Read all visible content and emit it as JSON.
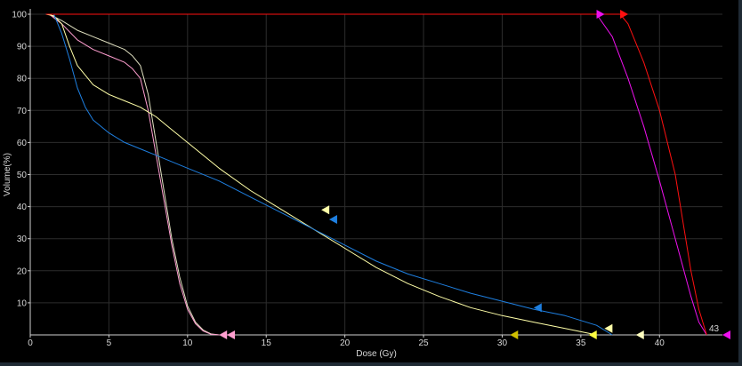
{
  "chart_data": {
    "type": "line",
    "title": "",
    "xlabel": "Dose (Gy)",
    "ylabel": "Volume(%)",
    "xlim": [
      0,
      44
    ],
    "ylim": [
      0,
      100
    ],
    "x_ticks": [
      0,
      5,
      10,
      15,
      20,
      25,
      30,
      35,
      40
    ],
    "y_ticks": [
      10,
      20,
      30,
      40,
      50,
      60,
      70,
      80,
      90,
      100
    ],
    "grid": true,
    "corner_label": "43",
    "colors": {
      "background": "#000000",
      "grid": "#2c2c2c",
      "axis": "#d0d0d0",
      "text": "#d8d8d8"
    },
    "series": [
      {
        "color": "#e0e0c0",
        "points": [
          [
            1.2,
            100
          ],
          [
            2.0,
            98
          ],
          [
            3.0,
            95
          ],
          [
            4.0,
            93
          ],
          [
            5.0,
            91
          ],
          [
            6.0,
            89
          ],
          [
            6.5,
            87
          ],
          [
            7.0,
            84
          ],
          [
            7.5,
            75
          ],
          [
            8.0,
            60
          ],
          [
            8.5,
            45
          ],
          [
            9.0,
            30
          ],
          [
            9.5,
            18
          ],
          [
            10.0,
            9
          ],
          [
            10.5,
            4
          ],
          [
            11.0,
            1.5
          ],
          [
            11.5,
            0.3
          ],
          [
            12.0,
            0
          ]
        ]
      },
      {
        "color": "#ff9ed0",
        "points": [
          [
            1.2,
            100
          ],
          [
            2.0,
            97
          ],
          [
            3.0,
            92
          ],
          [
            4.0,
            89
          ],
          [
            5.0,
            87
          ],
          [
            6.0,
            85
          ],
          [
            6.5,
            83
          ],
          [
            7.0,
            80
          ],
          [
            7.5,
            70
          ],
          [
            8.0,
            56
          ],
          [
            8.5,
            42
          ],
          [
            9.0,
            28
          ],
          [
            9.5,
            16
          ],
          [
            10.0,
            8
          ],
          [
            10.5,
            3.5
          ],
          [
            11.0,
            1.2
          ],
          [
            11.5,
            0.2
          ],
          [
            12.0,
            0
          ]
        ]
      },
      {
        "color": "#ffffa8",
        "points": [
          [
            1.0,
            100
          ],
          [
            1.5,
            99.5
          ],
          [
            2.0,
            97
          ],
          [
            2.5,
            90
          ],
          [
            3.0,
            84
          ],
          [
            4.0,
            78
          ],
          [
            5.0,
            75
          ],
          [
            6.0,
            73
          ],
          [
            7.0,
            71
          ],
          [
            8.0,
            68
          ],
          [
            9.0,
            64
          ],
          [
            10.0,
            60
          ],
          [
            12.0,
            52
          ],
          [
            14.0,
            45
          ],
          [
            16.0,
            39
          ],
          [
            18.0,
            33
          ],
          [
            20.0,
            27
          ],
          [
            22.0,
            21
          ],
          [
            24.0,
            16
          ],
          [
            26.0,
            12
          ],
          [
            28.0,
            8.5
          ],
          [
            30.0,
            6
          ],
          [
            32.0,
            4
          ],
          [
            34.0,
            2
          ],
          [
            35.0,
            1
          ],
          [
            36.0,
            0
          ]
        ]
      },
      {
        "color": "#1e7fe0",
        "points": [
          [
            1.5,
            100
          ],
          [
            2.0,
            94
          ],
          [
            2.5,
            86
          ],
          [
            3.0,
            77
          ],
          [
            3.5,
            71
          ],
          [
            4.0,
            67
          ],
          [
            5.0,
            63
          ],
          [
            6.0,
            60
          ],
          [
            7.0,
            58
          ],
          [
            8.0,
            56
          ],
          [
            10.0,
            52
          ],
          [
            12.0,
            48
          ],
          [
            14.0,
            43
          ],
          [
            16.0,
            38
          ],
          [
            18.0,
            33
          ],
          [
            20.0,
            28
          ],
          [
            22.0,
            23
          ],
          [
            24.0,
            19
          ],
          [
            26.0,
            16
          ],
          [
            28.0,
            13
          ],
          [
            30.0,
            10.5
          ],
          [
            32.0,
            8
          ],
          [
            34.0,
            6
          ],
          [
            36.0,
            3
          ],
          [
            37.0,
            0
          ]
        ]
      },
      {
        "color": "#ee10ee",
        "points": [
          [
            1.0,
            100
          ],
          [
            36.0,
            100
          ],
          [
            37.0,
            93
          ],
          [
            38.0,
            80
          ],
          [
            39.0,
            65
          ],
          [
            40.0,
            48
          ],
          [
            41.0,
            30
          ],
          [
            42.0,
            12
          ],
          [
            42.5,
            4
          ],
          [
            43.0,
            0
          ]
        ]
      },
      {
        "color": "#ff1010",
        "points": [
          [
            1.0,
            100
          ],
          [
            37.5,
            100
          ],
          [
            38.0,
            97
          ],
          [
            39.0,
            85
          ],
          [
            40.0,
            70
          ],
          [
            41.0,
            50
          ],
          [
            41.5,
            35
          ],
          [
            42.0,
            20
          ],
          [
            42.5,
            8
          ],
          [
            43.0,
            0
          ]
        ]
      }
    ],
    "markers": [
      {
        "x": 36.0,
        "y": 100,
        "direction": "right",
        "color": "#ee10ee"
      },
      {
        "x": 37.5,
        "y": 100,
        "direction": "right",
        "color": "#ff1010"
      },
      {
        "x": 18.5,
        "y": 39,
        "direction": "left",
        "color": "#ffffa8"
      },
      {
        "x": 19.0,
        "y": 36,
        "direction": "left",
        "color": "#1e7fe0"
      },
      {
        "x": 32.0,
        "y": 8.5,
        "direction": "left",
        "color": "#1e7fe0"
      },
      {
        "x": 36.5,
        "y": 2,
        "direction": "left",
        "color": "#ffffa8"
      },
      {
        "x": 12.0,
        "y": 0,
        "direction": "left",
        "color": "#ff9ed0"
      },
      {
        "x": 12.5,
        "y": 0,
        "direction": "left",
        "color": "#ff9ed0"
      },
      {
        "x": 30.5,
        "y": 0,
        "direction": "left",
        "color": "#d0c000"
      },
      {
        "x": 35.5,
        "y": 0,
        "direction": "left",
        "color": "#ffff40"
      },
      {
        "x": 38.5,
        "y": 0,
        "direction": "left",
        "color": "#ffffc0"
      },
      {
        "x": 44.0,
        "y": 0,
        "direction": "left",
        "color": "#ee10ee"
      }
    ]
  }
}
